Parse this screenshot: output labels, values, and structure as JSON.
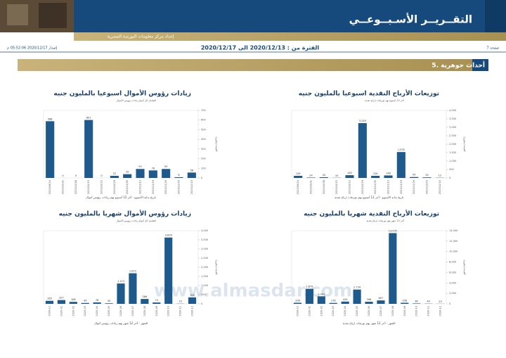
{
  "header": {
    "title": "التقــريــر الأسـبــوعــي",
    "subtitle": "إعداد مركز معلومات البورصة المصرية",
    "period": "الفترة من : 2020/12/13 الى 2020/12/17",
    "page": "صفحة 7",
    "issued": "إصدار 2020/12/17 05:52:06 م",
    "section": "5. أحداث جوهرية",
    "watermark": "www.almasdar.com"
  },
  "chart_data": [
    {
      "type": "bar",
      "title": "توزيعات الأرباح النقدية اسبوعيا بالمليون جنيه",
      "subtitle": "آخر 12 اسبوع بهم توزيعات ارباح نقدية",
      "x_label": "تاريخ بداية الأسبوع - آخر 12 أسبوع بهم توزيعات ارباح نقدية",
      "y_label": "القيمة (مليون)",
      "color": "#1f5a8c",
      "categories": [
        "2020/09/24",
        "2020/10/01",
        "2020/10/08",
        "2020/10/15",
        "2020/10/22",
        "2020/10/29",
        "2020/11/05",
        "2020/11/12",
        "2020/11/19",
        "2020/11/26",
        "2020/12/03",
        "2020/12/10"
      ],
      "values": [
        126,
        24,
        44,
        10,
        163,
        3249,
        126,
        148,
        1535,
        54,
        35,
        12
      ],
      "value_labels": [
        "126",
        "24",
        "44",
        "10",
        "163",
        "3,249",
        "126",
        "148",
        "1,535",
        "54",
        "35",
        "12"
      ],
      "ylim": [
        0,
        4000
      ],
      "yticks": [
        0,
        {
          "value": 500,
          "label": "500"
        },
        {
          "value": 1000,
          "label": "1,000"
        },
        {
          "value": 1500,
          "label": "1,500"
        },
        {
          "value": 2000,
          "label": "2,000"
        },
        {
          "value": 2500,
          "label": "2,500"
        },
        {
          "value": 3000,
          "label": "3,000"
        },
        {
          "value": 3500,
          "label": "3,500"
        },
        {
          "value": 4000,
          "label": "4,000"
        }
      ]
    },
    {
      "type": "bar",
      "title": "زيادات رؤوس الأموال اسبوعيا بالمليون جنيه",
      "subtitle": "الشامل كل أنواع زيادات رؤوس الأموال",
      "x_label": "تاريخ بداية الأسبوع - آخر 12 أسبوع بهم زيادات رؤوس أموال",
      "y_label": "القيمة (مليون)",
      "color": "#1f5a8c",
      "categories": [
        "2020/09/24",
        "2020/10/01",
        "2020/10/08",
        "2020/10/15",
        "2020/10/22",
        "2020/10/29",
        "2020/11/05",
        "2020/11/12",
        "2020/11/19",
        "2020/11/26",
        "2020/12/03",
        "2020/12/10"
      ],
      "values": [
        588,
        0,
        0,
        601,
        0,
        22,
        39,
        93,
        78,
        93,
        8,
        56
      ],
      "ylim": [
        0,
        700
      ],
      "yticks": [
        0,
        100,
        200,
        300,
        400,
        500,
        600,
        700
      ]
    },
    {
      "type": "bar",
      "title": "زيادات رؤوس الأموال شهريا بالمليون جنيه",
      "subtitle": "الشامل كل أنواع زيادات رؤوس الأموال",
      "x_label": "الشهر - آخر 12 شهر بهم زيادات رؤوس أموال",
      "y_label": "القيمة (مليون)",
      "color": "#1f5a8c",
      "categories": [
        "2019-12",
        "2020-01",
        "2020-02",
        "2020-03",
        "2020-04",
        "2020-05",
        "2020-06",
        "2020-07",
        "2020-08",
        "2020-09",
        "2020-10",
        "2020-11",
        "2020-12"
      ],
      "values": [
        165,
        207,
        108,
        49,
        78,
        30,
        1113,
        1672,
        266,
        74,
        3626,
        10,
        355
      ],
      "value_labels": [
        "165",
        "207",
        "108",
        "49",
        "78",
        "30",
        "1,113",
        "1,672",
        "266",
        "74",
        "3,626",
        "10",
        "355"
      ],
      "ylim": [
        0,
        4000
      ],
      "yticks": [
        0,
        {
          "value": 500,
          "label": "500"
        },
        {
          "value": 1000,
          "label": "1,000"
        },
        {
          "value": 1500,
          "label": "1,500"
        },
        {
          "value": 2000,
          "label": "2,000"
        },
        {
          "value": 2500,
          "label": "2,500"
        },
        {
          "value": 3000,
          "label": "3,000"
        },
        {
          "value": 3500,
          "label": "3,500"
        },
        {
          "value": 4000,
          "label": "4,000"
        }
      ]
    },
    {
      "type": "bar",
      "title": "توزيعات الأرباح النقدية شهريا بالمليون جنيه",
      "subtitle": "آخر 12 شهر بهم توزيعات ارباح نقدية",
      "x_label": "الشهر - آخر 12 شهر بهم توزيعات ارباح نقدية",
      "y_label": "القيمة (مليون)",
      "color": "#1f5a8c",
      "categories": [
        "2019-12",
        "2020-01",
        "2020-02",
        "2020-03",
        "2020-04",
        "2020-05",
        "2020-06",
        "2020-07",
        "2020-08",
        "2020-09",
        "2020-10",
        "2020-11",
        "2020-12"
      ],
      "values": [
        206,
        2879,
        1441,
        176,
        434,
        2734,
        396,
        657,
        13535,
        206,
        80,
        40,
        23
      ],
      "value_labels": [
        "206",
        "2,879",
        "1,441",
        "176",
        "434",
        "2,734",
        "396",
        "657",
        "13,535",
        "206",
        "80",
        "40",
        "23"
      ],
      "ylim": [
        0,
        14000
      ],
      "yticks": [
        0,
        {
          "value": 2000,
          "label": "2,000"
        },
        {
          "value": 4000,
          "label": "4,000"
        },
        {
          "value": 6000,
          "label": "6,000"
        },
        {
          "value": 8000,
          "label": "8,000"
        },
        {
          "value": 10000,
          "label": "10,000"
        },
        {
          "value": 12000,
          "label": "12,000"
        },
        {
          "value": 14000,
          "label": "14,000"
        }
      ]
    }
  ]
}
